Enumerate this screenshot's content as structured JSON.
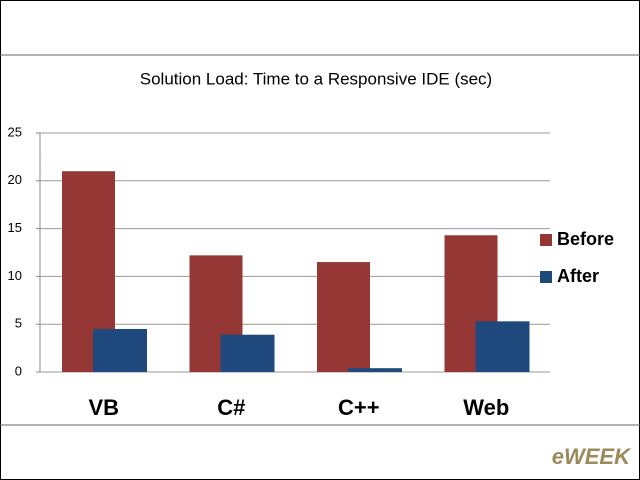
{
  "chart_data": {
    "type": "bar",
    "title": "Solution Load:  Time to a Responsive IDE (sec)",
    "categories": [
      "VB",
      "C#",
      "C++",
      "Web"
    ],
    "series": [
      {
        "name": "Before",
        "color": "#953735",
        "values": [
          21,
          12.2,
          11.5,
          14.3
        ]
      },
      {
        "name": "After",
        "color": "#1f497d",
        "values": [
          4.5,
          3.9,
          0.4,
          5.3
        ]
      }
    ],
    "ylim": [
      0,
      25
    ],
    "yticks": [
      0,
      5,
      10,
      15,
      20,
      25
    ],
    "grid": true,
    "legend": "right"
  },
  "logo": "eWEEK"
}
